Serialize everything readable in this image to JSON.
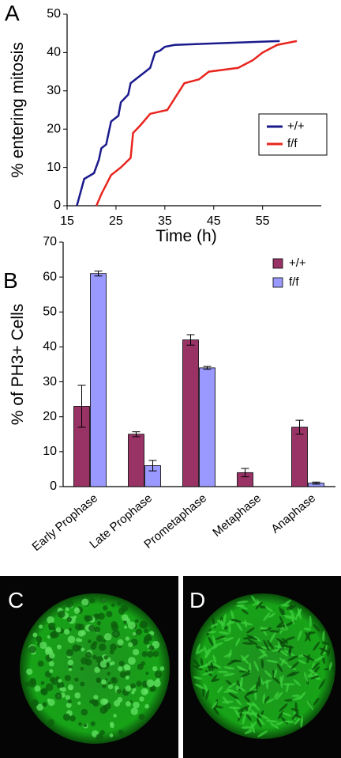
{
  "chart_data": [
    {
      "type": "line",
      "panel_label": "A",
      "x_label": "Time (h)",
      "y_label": "% entering mitosis",
      "xlim": [
        15,
        67
      ],
      "xticks": [
        15,
        25,
        35,
        45,
        55
      ],
      "ylim": [
        0,
        50
      ],
      "yticks": [
        0,
        10,
        20,
        30,
        40,
        50
      ],
      "series": [
        {
          "name": "+/+",
          "color": "#1a1a8c",
          "x": [
            17,
            18.5,
            20.5,
            21.5,
            22,
            23,
            24,
            25.5,
            26,
            27.5,
            28,
            31,
            32,
            33,
            34,
            35,
            37,
            58.5
          ],
          "values": [
            0,
            7,
            8.5,
            12,
            15,
            16,
            22,
            23.5,
            27,
            29,
            32,
            35,
            36,
            40,
            40.5,
            41.5,
            42,
            43
          ]
        },
        {
          "name": "f/f",
          "color": "#e8251f",
          "x": [
            21,
            22,
            24,
            26,
            28,
            28.5,
            30,
            32,
            35.5,
            37,
            39,
            42,
            44,
            50,
            53,
            55,
            58,
            62
          ],
          "values": [
            0,
            3,
            8,
            10,
            12.5,
            19,
            21,
            24,
            25,
            28,
            32,
            33,
            35,
            36,
            38,
            40,
            42,
            43
          ]
        }
      ]
    },
    {
      "type": "bar",
      "panel_label": "B",
      "y_label": "% of PH3+ Cells",
      "categories": [
        "Early Prophase",
        "Late Prophase",
        "Prometaphase",
        "Metaphase",
        "Anaphase"
      ],
      "ylim": [
        0,
        70
      ],
      "yticks": [
        0,
        10,
        20,
        30,
        40,
        50,
        60,
        70
      ],
      "series": [
        {
          "name": "+/+",
          "color": "#993366",
          "values": [
            23,
            15,
            42,
            4,
            17
          ],
          "errors": [
            6,
            0.7,
            1.5,
            1.2,
            2
          ]
        },
        {
          "name": "f/f",
          "color": "#9999ff",
          "values": [
            61,
            6,
            34,
            0,
            1
          ],
          "errors": [
            0.7,
            1.5,
            0.4,
            0,
            0.3
          ]
        }
      ]
    }
  ],
  "images": [
    {
      "label": "C"
    },
    {
      "label": "D"
    }
  ]
}
